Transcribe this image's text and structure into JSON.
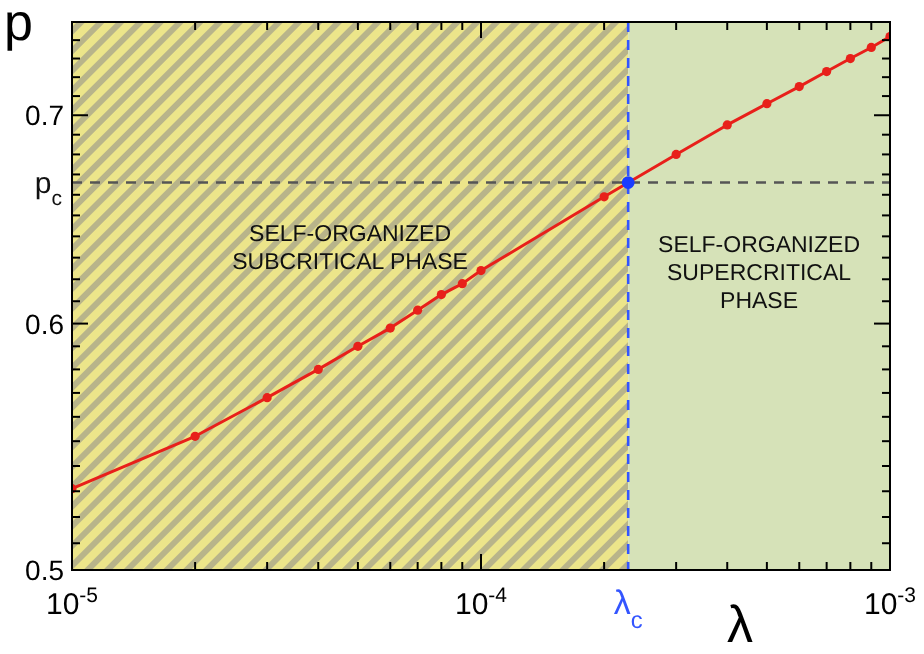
{
  "chart_data": {
    "type": "line",
    "xlabel": "λ",
    "ylabel": "p",
    "log": "xy",
    "grid": false,
    "marker": "circle",
    "line_style": "solid",
    "xlim": [
      1e-05,
      0.001
    ],
    "ylim": [
      0.5,
      0.75
    ],
    "xticks": [
      {
        "value": 1e-05,
        "label": "10$^{-5}$"
      },
      {
        "value": 2e-05,
        "label": null
      },
      {
        "value": 3e-05,
        "label": null
      },
      {
        "value": 4e-05,
        "label": null
      },
      {
        "value": 5e-05,
        "label": null
      },
      {
        "value": 6e-05,
        "label": null
      },
      {
        "value": 7e-05,
        "label": null
      },
      {
        "value": 8e-05,
        "label": null
      },
      {
        "value": 9e-05,
        "label": null
      },
      {
        "value": 0.0001,
        "label": "10$^{-4}$"
      },
      {
        "value": 0.0002,
        "label": null
      },
      {
        "value": 0.0003,
        "label": null
      },
      {
        "value": 0.0004,
        "label": null
      },
      {
        "value": 0.0005,
        "label": null
      },
      {
        "value": 0.0006,
        "label": null
      },
      {
        "value": 0.0007,
        "label": null
      },
      {
        "value": 0.0008,
        "label": null
      },
      {
        "value": 0.0009,
        "label": null
      },
      {
        "value": 0.001,
        "label": "10$^{-3}$"
      }
    ],
    "yticks": [
      0.5,
      {
        "value": 0.51,
        "label": null
      },
      {
        "value": 0.52,
        "label": null
      },
      {
        "value": 0.53,
        "label": null
      },
      {
        "value": 0.54,
        "label": null
      },
      {
        "value": 0.55,
        "label": null
      },
      {
        "value": 0.56,
        "label": null
      },
      {
        "value": 0.57,
        "label": null
      },
      {
        "value": 0.58,
        "label": null
      },
      {
        "value": 0.59,
        "label": null
      },
      0.6,
      {
        "value": 0.61,
        "label": null
      },
      {
        "value": 0.62,
        "label": null
      },
      {
        "value": 0.63,
        "label": null
      },
      {
        "value": 0.64,
        "label": null
      },
      {
        "value": 0.65,
        "label": null
      },
      {
        "value": 0.66,
        "label": null
      },
      {
        "value": 0.67,
        "label": null
      },
      {
        "value": 0.68,
        "label": null
      },
      {
        "value": 0.69,
        "label": null
      },
      0.7,
      {
        "value": 0.71,
        "label": null
      },
      {
        "value": 0.72,
        "label": null
      },
      {
        "value": 0.73,
        "label": null
      },
      {
        "value": 0.74,
        "label": null
      }
    ],
    "series": [
      {
        "color": "#e8201a",
        "x": [
          1e-05,
          2e-05,
          3e-05,
          4e-05,
          5e-05,
          6e-05,
          7e-05,
          8e-05,
          9e-05,
          0.0001,
          0.0002,
          0.0003,
          0.0004,
          0.0005,
          0.0006,
          0.0007,
          0.0008,
          0.0009,
          0.001
        ],
        "values": [
          0.531,
          0.552,
          0.568,
          0.58,
          0.59,
          0.598,
          0.606,
          0.613,
          0.618,
          0.624,
          0.659,
          0.68,
          0.695,
          0.706,
          0.715,
          0.723,
          0.73,
          0.736,
          0.742
        ]
      },
      {
        "type": "scatter",
        "color": "#1a3cff",
        "x": [
          0.000229
        ],
        "values": [
          0.666
        ]
      }
    ],
    "ref_lines": [
      {
        "axis": "y",
        "value": 0.666,
        "label": "p$_{c}$",
        "color": "#555555",
        "line_style": "dashed"
      },
      {
        "axis": "x",
        "value": 0.000229,
        "label": "λ$_{c}$",
        "color": "#3355ff",
        "line_style": "dashed"
      }
    ],
    "bands": [
      {
        "axis": "x",
        "from": 1e-05,
        "to": 0.000229,
        "label": "SELF-ORGANIZED\nSUBCRITICAL PHASE",
        "color": "#ece58a"
      },
      {
        "axis": "x",
        "from": 0.000229,
        "to": 0.001,
        "label": "SELF-ORGANIZED\nSUPERCRITICAL\nPHASE",
        "color": "#d6e2b8"
      }
    ]
  }
}
